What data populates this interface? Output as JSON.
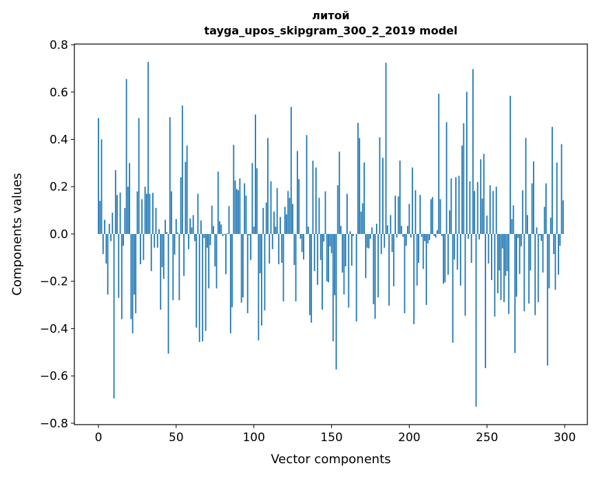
{
  "chart_data": {
    "type": "bar",
    "title_lines": [
      "литой",
      "tayga_upos_skipgram_300_2_2019 model"
    ],
    "xlabel": "Vector components",
    "ylabel": "Components values",
    "xlim": [
      -15.5,
      314.6
    ],
    "ylim": [
      -0.806,
      0.803
    ],
    "xticks": [
      0,
      50,
      100,
      150,
      200,
      250,
      300
    ],
    "xtick_labels": [
      "0",
      "50",
      "100",
      "150",
      "200",
      "250",
      "300"
    ],
    "yticks": [
      -0.8,
      -0.6,
      -0.4,
      -0.2,
      0.0,
      0.2,
      0.4,
      0.6,
      0.8
    ],
    "ytick_labels": [
      "−0.8",
      "−0.6",
      "−0.4",
      "−0.2",
      "0.0",
      "0.2",
      "0.4",
      "0.6",
      "0.8"
    ],
    "grid": false,
    "bar_color": "#1f77b4",
    "values": [
      0.49,
      0.14,
      0.4,
      -0.085,
      0.06,
      -0.125,
      -0.256,
      0.043,
      -0.03,
      0.09,
      -0.695,
      0.27,
      0.165,
      -0.27,
      0.175,
      -0.36,
      -0.05,
      0.11,
      0.655,
      0.2,
      0.3,
      -0.36,
      -0.42,
      -0.256,
      -0.335,
      0.18,
      0.49,
      -0.128,
      0.147,
      -0.11,
      0.2,
      0.17,
      0.727,
      0.17,
      -0.157,
      0.174,
      -0.058,
      0.11,
      -0.058,
      0.02,
      -0.32,
      -0.14,
      -0.19,
      0.06,
      0.008,
      -0.506,
      0.494,
      0.18,
      -0.28,
      -0.087,
      0.063,
      0.006,
      -0.28,
      0.24,
      0.543,
      -0.177,
      0.305,
      0.374,
      -0.064,
      0.066,
      0.028,
      0.08,
      -0.03,
      -0.396,
      0.17,
      -0.457,
      0.057,
      -0.454,
      -0.017,
      -0.41,
      -0.058,
      -0.23,
      -0.047,
      0.12,
      0.034,
      -0.137,
      -0.23,
      0.264,
      0.054,
      0.04,
      -0.009,
      -0.003,
      -0.17,
      0.003,
      0.118,
      -0.42,
      -0.31,
      0.377,
      0.226,
      0.19,
      0.185,
      0.235,
      -0.29,
      -0.268,
      0.214,
      0.162,
      -0.335,
      -0.006,
      -0.11,
      0.3,
      0.031,
      0.505,
      0.278,
      -0.45,
      -0.166,
      -0.387,
      0.11,
      -0.323,
      0.133,
      0.406,
      -0.125,
      0.223,
      -0.064,
      0.095,
      0.031,
      0.194,
      -0.128,
      0.072,
      -0.122,
      -0.285,
      0.115,
      0.083,
      0.182,
      0.153,
      0.537,
      0.127,
      -0.131,
      -0.285,
      0.351,
      0.232,
      -0.02,
      -0.076,
      -0.108,
      0.0,
      0.418,
      0.031,
      -0.343,
      -0.375,
      0.31,
      -0.157,
      0.281,
      -0.215,
      0.153,
      -0.11,
      -0.32,
      -0.032,
      0.18,
      -0.2,
      -0.204,
      -0.052,
      -0.081,
      -0.454,
      -0.259,
      -0.573,
      0.206,
      0.348,
      0.034,
      -0.163,
      -0.256,
      -0.137,
      0.17,
      -0.311,
      0.011,
      -0.134,
      -0.009,
      0.0,
      -0.37,
      0.47,
      0.406,
      0.095,
      0.13,
      0.302,
      -0.186,
      -0.058,
      -0.061,
      -0.02,
      0.028,
      -0.297,
      -0.358,
      0.043,
      -0.268,
      0.409,
      -0.085,
      0.322,
      -0.058,
      0.724,
      0.037,
      -0.303,
      0.08,
      -0.076,
      -0.221,
      0.162,
      -0.015,
      0.159,
      0.31,
      0.034,
      -0.012,
      -0.335,
      -0.05,
      0.034,
      0.127,
      -0.015,
      0.281,
      -0.381,
      0.185,
      -0.218,
      -0.122,
      0.165,
      -0.012,
      -0.148,
      -0.03,
      -0.3,
      -0.04,
      -0.026,
      0.147,
      0.156,
      -0.009,
      -0.015,
      0.016,
      0.593,
      0.147,
      -0.009,
      -0.21,
      -0.204,
      0.473,
      -0.172,
      0.1,
      0.235,
      -0.46,
      -0.108,
      0.24,
      -0.151,
      0.246,
      -0.218,
      0.374,
      0.468,
      -0.346,
      0.601,
      -0.02,
      0.223,
      -0.122,
      0.697,
      0.182,
      -0.73,
      0.22,
      -0.023,
      0.316,
      0.15,
      0.339,
      -0.567,
      0.078,
      -0.125,
      0.206,
      -0.195,
      0.182,
      -0.349,
      0.2,
      -0.25,
      -0.154,
      -0.279,
      -0.061,
      -0.288,
      -0.177,
      -0.157,
      -0.338,
      0.584,
      0.063,
      0.121,
      -0.503,
      -0.265,
      -0.017,
      -0.169,
      -0.052,
      0.185,
      -0.327,
      0.406,
      0.08,
      -0.294,
      -0.154,
      0.214,
      0.307,
      -0.343,
      0.028,
      -0.288,
      -0.006,
      -0.029,
      -0.163,
      0.115,
      0.214,
      -0.556,
      -0.23,
      0.069,
      0.453,
      -0.085,
      -0.236,
      0.302,
      -0.172,
      -0.05,
      0.38,
      0.142
    ]
  }
}
